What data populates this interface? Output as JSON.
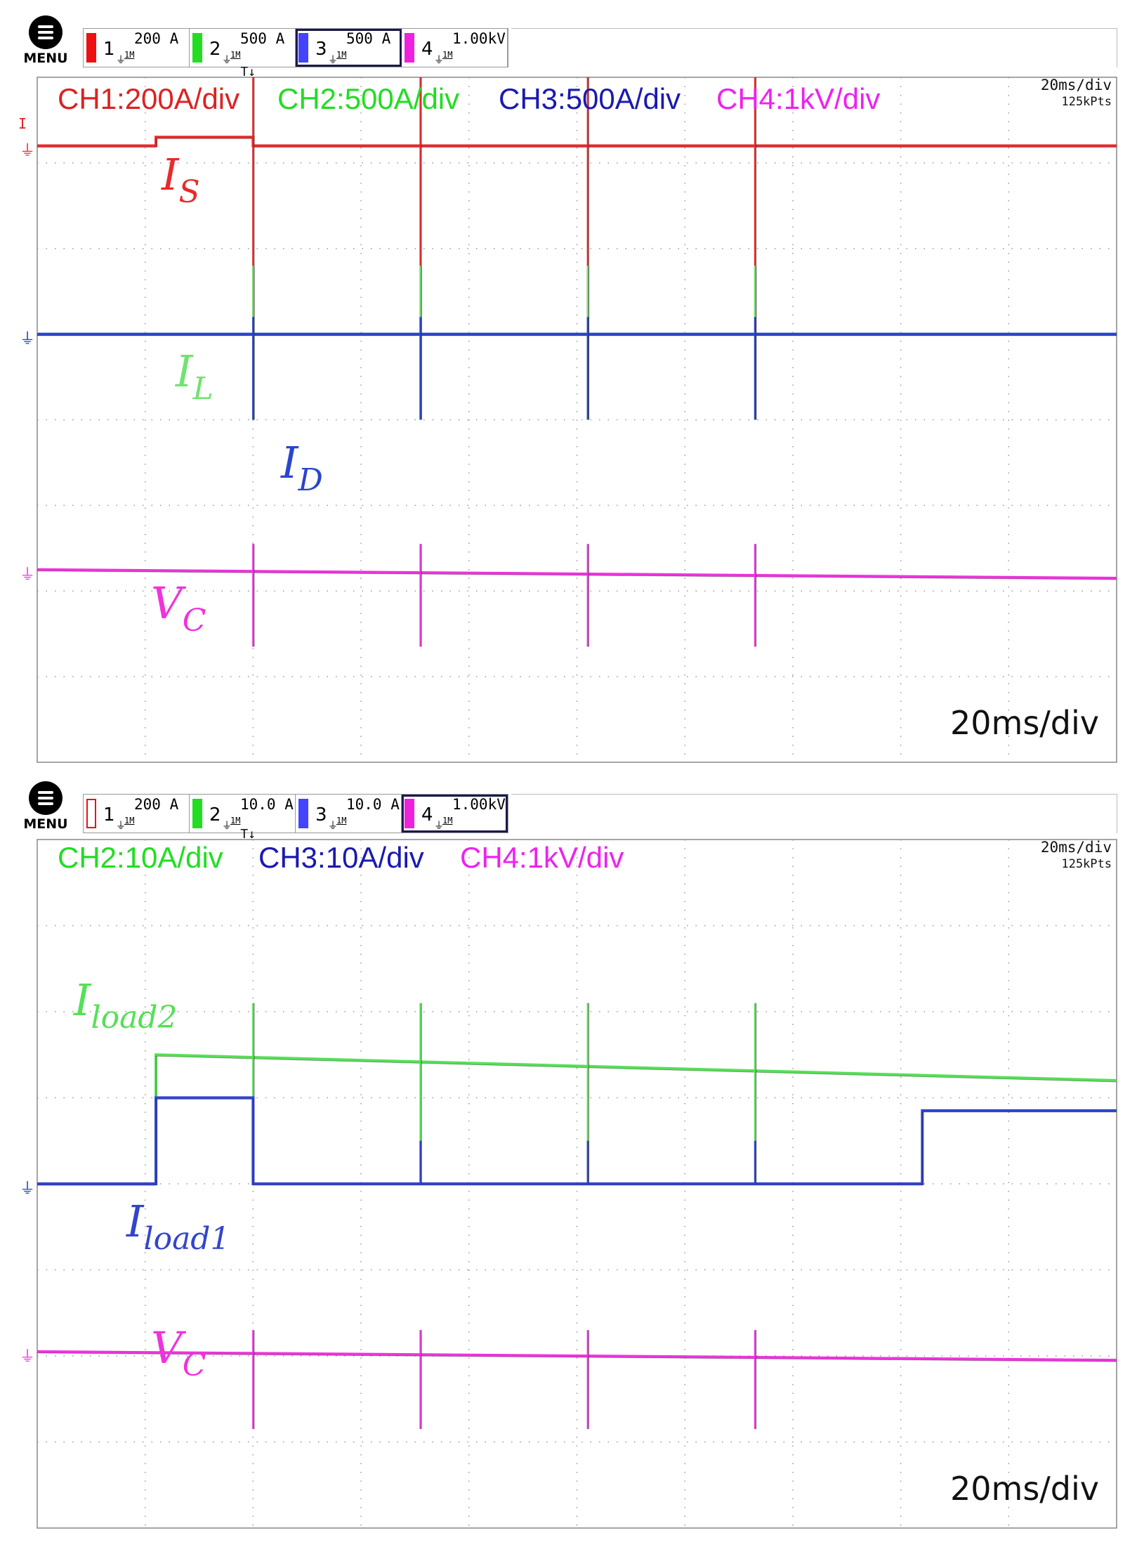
{
  "panels": [
    {
      "menu_label": "MENU",
      "channels": [
        {
          "num": "1",
          "scale": "200 A",
          "imp": "1M",
          "color": "#ee1111",
          "filled": true,
          "selected": false
        },
        {
          "num": "2",
          "scale": "500 A",
          "imp": "1M",
          "color": "#22dd22",
          "filled": true,
          "selected": false
        },
        {
          "num": "3",
          "scale": "500 A",
          "imp": "1M",
          "color": "#4444ff",
          "filled": true,
          "selected": true
        },
        {
          "num": "4",
          "scale": "1.00kV",
          "imp": "1M",
          "color": "#ee22dd",
          "filled": true,
          "selected": false
        }
      ],
      "ch_labels": [
        {
          "text": "CH1:200A/div",
          "color": "#dd2222"
        },
        {
          "text": "CH2:500A/div",
          "color": "#22dd22"
        },
        {
          "text": "CH3:500A/div",
          "color": "#1a1ab0"
        },
        {
          "text": "CH4:1kV/div",
          "color": "#ee22ee"
        }
      ],
      "timebase": "20ms/div",
      "points": "125kPts",
      "bottom_label": "20ms/div",
      "trigger_marker": "T",
      "trigger_level_marker": "I"
    },
    {
      "menu_label": "MENU",
      "channels": [
        {
          "num": "1",
          "scale": "200 A",
          "imp": "1M",
          "color": "#ee1111",
          "filled": false,
          "selected": false
        },
        {
          "num": "2",
          "scale": "10.0 A",
          "imp": "1M",
          "color": "#22dd22",
          "filled": true,
          "selected": false
        },
        {
          "num": "3",
          "scale": "10.0 A",
          "imp": "1M",
          "color": "#4444ff",
          "filled": true,
          "selected": false
        },
        {
          "num": "4",
          "scale": "1.00kV",
          "imp": "1M",
          "color": "#ee22dd",
          "filled": true,
          "selected": true
        }
      ],
      "ch_labels": [
        {
          "text": "CH2:10A/div",
          "color": "#22dd22"
        },
        {
          "text": "CH3:10A/div",
          "color": "#1a1ab0"
        },
        {
          "text": "CH4:1kV/div",
          "color": "#ee22ee"
        }
      ],
      "timebase": "20ms/div",
      "points": "125kPts",
      "bottom_label": "20ms/div",
      "trigger_marker": "T"
    }
  ],
  "chart_data": [
    {
      "type": "line",
      "x_unit": "div",
      "xlim": [
        0,
        10
      ],
      "ylim": [
        -4,
        4
      ],
      "grid": true,
      "series": [
        {
          "name": "I_S",
          "label_main": "I",
          "label_sub": "S",
          "color": "#e82a2a",
          "x": [
            0,
            1.1,
            1.1,
            2.0,
            2.0,
            10
          ],
          "y": [
            3.2,
            3.2,
            3.3,
            3.3,
            3.2,
            3.2
          ],
          "spikes": [
            2.0,
            3.55,
            5.1,
            6.65
          ],
          "spike_up": 4.0,
          "spike_down": 0,
          "step_up_at": 8.2,
          "step_level": 3.25
        },
        {
          "name": "I_L",
          "label_main": "I",
          "label_sub": "L",
          "color": "#6fe46f",
          "x": [
            0,
            10
          ],
          "y": [
            1.0,
            1.0
          ],
          "spikes": [
            2.0,
            3.55,
            5.1,
            6.65
          ],
          "spike_up": 1.8,
          "spike_down": 0.0
        },
        {
          "name": "I_D",
          "label_main": "I",
          "label_sub": "D",
          "color": "#2a45cc",
          "x": [
            0,
            10
          ],
          "y": [
            1.0,
            1.0
          ],
          "spikes": [
            2.0,
            3.55,
            5.1,
            6.65
          ],
          "spike_up": 1.2,
          "spike_down": 0.0
        },
        {
          "name": "V_C",
          "label_main": "V",
          "label_sub": "C",
          "color": "#ee33dd",
          "x": [
            0,
            10
          ],
          "y": [
            -1.75,
            -1.85
          ],
          "spikes": [
            2.0,
            3.55,
            5.1,
            6.65
          ],
          "spike_up": -1.45,
          "spike_down": -2.65
        }
      ]
    },
    {
      "type": "line",
      "x_unit": "div",
      "xlim": [
        0,
        10
      ],
      "ylim": [
        -4,
        4
      ],
      "grid": true,
      "series": [
        {
          "name": "I_load2",
          "label_main": "I",
          "label_sub": "load2",
          "color": "#55e055",
          "x": [
            0,
            1.1,
            1.1,
            10
          ],
          "y": [
            0.0,
            0.0,
            1.5,
            1.2
          ],
          "spikes": [
            2.0,
            3.55,
            5.1,
            6.65
          ],
          "spike_up": 2.1,
          "spike_down": 0.0
        },
        {
          "name": "I_load1",
          "label_main": "I",
          "label_sub": "load1",
          "color": "#3344cc",
          "x": [
            0,
            1.1,
            1.1,
            2.0,
            2.0,
            8.2,
            8.2,
            10
          ],
          "y": [
            0.0,
            0.0,
            1.0,
            1.0,
            0.0,
            0.0,
            0.85,
            0.85
          ],
          "spikes": [
            3.55,
            5.1,
            6.65
          ],
          "spike_up": 0.5,
          "spike_down": 0.0
        },
        {
          "name": "V_C",
          "label_main": "V",
          "label_sub": "C",
          "color": "#ee33dd",
          "x": [
            0,
            10
          ],
          "y": [
            -1.95,
            -2.05
          ],
          "spikes": [
            2.0,
            3.55,
            5.1,
            6.65
          ],
          "spike_up": -1.7,
          "spike_down": -2.85
        }
      ]
    }
  ]
}
